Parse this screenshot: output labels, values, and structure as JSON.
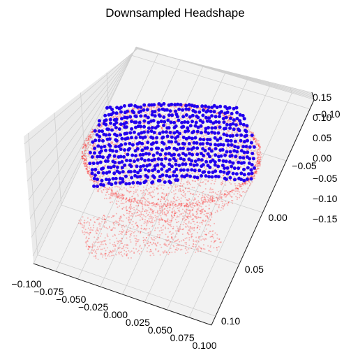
{
  "chart_data": {
    "type": "scatter",
    "title": "Downsampled Headshape",
    "xlim": [
      -0.1,
      0.1
    ],
    "ylim": [
      -0.1,
      0.1
    ],
    "zlim": [
      -0.16,
      0.16
    ],
    "grid": true,
    "x_ticks": [
      "−0.100",
      "−0.075",
      "−0.050",
      "−0.025",
      "0.000",
      "0.025",
      "0.050",
      "0.075",
      "0.100"
    ],
    "y_ticks": [
      "−0.10",
      "−0.05",
      "0.00",
      "0.05",
      "0.10"
    ],
    "z_ticks": [
      "−0.15",
      "−0.10",
      "−0.05",
      "0.00",
      "0.05",
      "0.10",
      "0.15"
    ],
    "series": [
      {
        "color": "#ff0000",
        "marker_size": 1,
        "alpha": 0.25,
        "count": 4000
      },
      {
        "color": "#2200ee",
        "marker_size": 4,
        "alpha": 1.0,
        "count": 650
      }
    ]
  }
}
